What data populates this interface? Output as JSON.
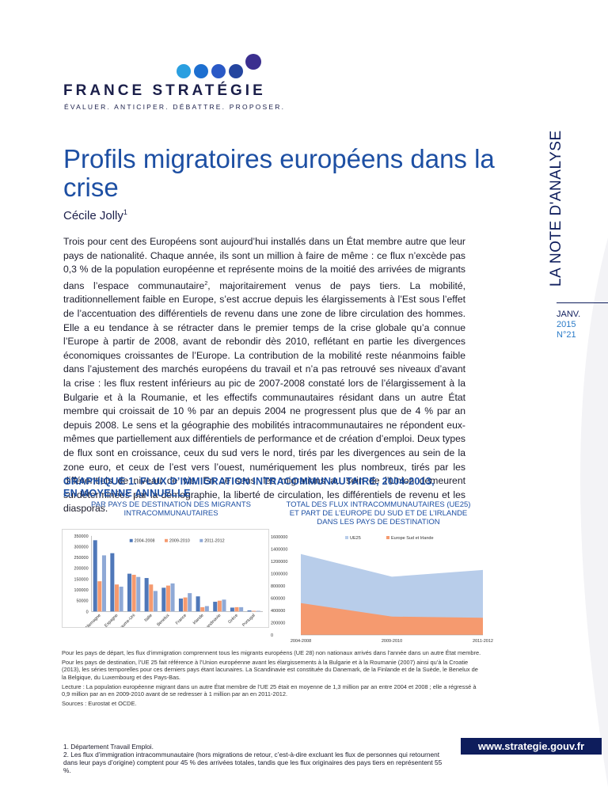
{
  "brand": {
    "name": "FRANCE STRATÉGIE",
    "tagline": "ÉVALUER. ANTICIPER. DÉBATTRE. PROPOSER.",
    "colors": {
      "navy": "#0e1d5c",
      "blue": "#1d4fa3",
      "light_blue": "#2a9fe0",
      "purple": "#3b2f8f"
    }
  },
  "series_label": "LA NOTE D'ANALYSE",
  "issue": {
    "month": "JANV.",
    "year": "2015",
    "number": "N°21"
  },
  "title": "Profils migratoires européens dans la crise",
  "author": {
    "name": "Cécile Jolly",
    "note": "1"
  },
  "abstract": {
    "p1": "Trois pour cent des Européens sont aujourd’hui installés dans un État membre autre que leur pays de nationalité. Chaque année, ils sont un million à faire de même : ce flux n’excède pas 0,3 % de la population européenne et représente moins de la moitié des arrivées de migrants dans l’espace communautaire",
    "note2": "2",
    "p2": ", majoritairement venus de pays tiers. La mobilité, traditionnellement faible en Europe, s’est accrue depuis les élargissements à l’Est sous l’effet de l’accentuation des différentiels de revenu dans une zone de libre circulation des hommes. Elle a eu tendance à se rétracter dans le premier temps de la crise globale qu’a connue l’Europe à partir de 2008, avant de rebondir dès 2010, reflétant en partie les divergences économiques croissantes de l’Europe. La contribution de la mobilité reste néanmoins faible dans l’ajustement des marchés européens du travail et n’a pas retrouvé ses niveaux d’avant la crise : les flux restent inférieurs au pic de 2007-2008 constaté lors de l’élargissement à la Bulgarie et à la Roumanie, et les effectifs communautaires résidant dans un autre État membre qui croissait de 10 % par an depuis 2004 ne progressent plus que de 4 % par an depuis 2008. Le sens et la géographie des mobilités intracommunautaires ne répondent eux-mêmes que partiellement aux différentiels de performance et de création d’emploi. Deux types de flux sont en croissance, ceux du sud vers le nord, tirés par les divergences au sein de la zone euro, et ceux de l’est vers l’ouest, numériquement les plus nombreux, tirés par les différentiels de niveau de vie. En ce sens, les migrations au sein de l’Union demeurent surdéterminées par la démographie, la liberté de circulation, les différentiels de revenu et les diasporas."
  },
  "graph": {
    "title_line1": "GRAPHIQUE 1. FLUX D’IMMIGRATION INTRACOMMUNAUTAIRE, 2004-2013,",
    "title_line2": "EN MOYENNE ANNUELLE",
    "left_subtitle": "PAR PAYS DE DESTINATION DES MIGRANTS INTRACOMMUNAUTAIRES",
    "right_subtitle_line1": "TOTAL DES FLUX INTRACOMMUNAUTAIRES (UE25)",
    "right_subtitle_line2": "ET PART DE L’EUROPE DU SUD ET DE L’IRLANDE",
    "right_subtitle_line3": "DANS LES PAYS DE DESTINATION"
  },
  "chart_data": [
    {
      "type": "bar",
      "title": "",
      "categories": [
        "Allemagne",
        "Espagne",
        "Royaume-Uni",
        "Italie",
        "Benelux",
        "France",
        "Irlande",
        "Scandinavie",
        "Grèce",
        "Portugal"
      ],
      "series": [
        {
          "name": "2004-2008",
          "color": "#4f78b9",
          "values": [
            330000,
            270000,
            175000,
            155000,
            110000,
            60000,
            70000,
            45000,
            18000,
            5000
          ]
        },
        {
          "name": "2009-2010",
          "color": "#f59a6f",
          "values": [
            140000,
            125000,
            170000,
            125000,
            120000,
            65000,
            20000,
            50000,
            20000,
            3000
          ]
        },
        {
          "name": "2011-2012",
          "color": "#8fa9d6",
          "values": [
            260000,
            115000,
            160000,
            95000,
            130000,
            85000,
            25000,
            55000,
            20000,
            3000
          ]
        }
      ],
      "ylim": [
        0,
        350000
      ],
      "yticks": [
        0,
        50000,
        100000,
        150000,
        200000,
        250000,
        300000,
        350000
      ],
      "legend": "top"
    },
    {
      "type": "area",
      "title": "",
      "categories": [
        "2004-2008",
        "2009-2010",
        "2011-2012"
      ],
      "series": [
        {
          "name": "UE25",
          "color": "#b8cdea",
          "values": [
            1320000,
            950000,
            1060000
          ]
        },
        {
          "name": "Europe Sud et Irlande",
          "color": "#f59a6f",
          "values": [
            520000,
            300000,
            280000
          ]
        }
      ],
      "ylim": [
        0,
        1600000
      ],
      "yticks": [
        0,
        200000,
        400000,
        600000,
        800000,
        1000000,
        1200000,
        1400000,
        1600000
      ],
      "legend": "top"
    }
  ],
  "notes": {
    "n1": "Pour les pays de départ, les flux d’immigration comprennent tous les migrants européens (UE 28) non nationaux arrivés dans l’année dans un autre État membre.",
    "n2": "Pour les pays de destination, l’UE 25 fait référence à l’Union européenne avant les élargissements à la Bulgarie et à la Roumanie (2007) ainsi qu’à la Croatie (2013), les séries temporelles pour ces derniers pays étant lacunaires. La Scandinavie est constituée du Danemark, de la Finlande et de la Suède, le Benelux de la Belgique, du Luxembourg et des Pays-Bas.",
    "n3": "Lecture : La population européenne migrant dans un autre État membre de l’UE 25 était en moyenne de 1,3 million par an entre 2004 et 2008 ; elle a régressé à 0,9 million par an en 2009-2010 avant de se redresser à 1 million par an en 2011-2012.",
    "n4": "Sources : Eurostat et OCDE."
  },
  "footnotes": {
    "f1": "1. Département Travail Emploi.",
    "f2": "2. Les flux d’immigration intracommunautaire (hors migrations de retour, c’est-à-dire excluant les flux de personnes qui retournent dans leur pays d’origine) comptent pour 45 % des arrivées totales, tandis que les flux originaires des pays tiers en représentent 55 %."
  },
  "website": "www.strategie.gouv.fr"
}
